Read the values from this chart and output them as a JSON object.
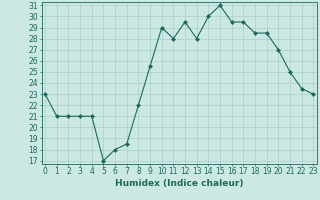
{
  "x": [
    0,
    1,
    2,
    3,
    4,
    5,
    6,
    7,
    8,
    9,
    10,
    11,
    12,
    13,
    14,
    15,
    16,
    17,
    18,
    19,
    20,
    21,
    22,
    23
  ],
  "y": [
    23,
    21,
    21,
    21,
    21,
    17,
    18,
    18.5,
    22,
    25.5,
    29,
    28,
    29.5,
    28,
    30,
    31,
    29.5,
    29.5,
    28.5,
    28.5,
    27,
    25,
    23.5,
    23
  ],
  "line_color": "#1a6b5a",
  "marker_color": "#1a6b5a",
  "bg_color": "#cce8e4",
  "grid_color": "#aacfcb",
  "xlabel": "Humidex (Indice chaleur)",
  "ylim_min": 17,
  "ylim_max": 31,
  "xlim_min": -0.3,
  "xlim_max": 23.3,
  "yticks": [
    17,
    18,
    19,
    20,
    21,
    22,
    23,
    24,
    25,
    26,
    27,
    28,
    29,
    30,
    31
  ],
  "xticks": [
    0,
    1,
    2,
    3,
    4,
    5,
    6,
    7,
    8,
    9,
    10,
    11,
    12,
    13,
    14,
    15,
    16,
    17,
    18,
    19,
    20,
    21,
    22,
    23
  ],
  "axis_color": "#1a6b5a",
  "font_size_label": 6.5,
  "font_size_tick": 5.5
}
